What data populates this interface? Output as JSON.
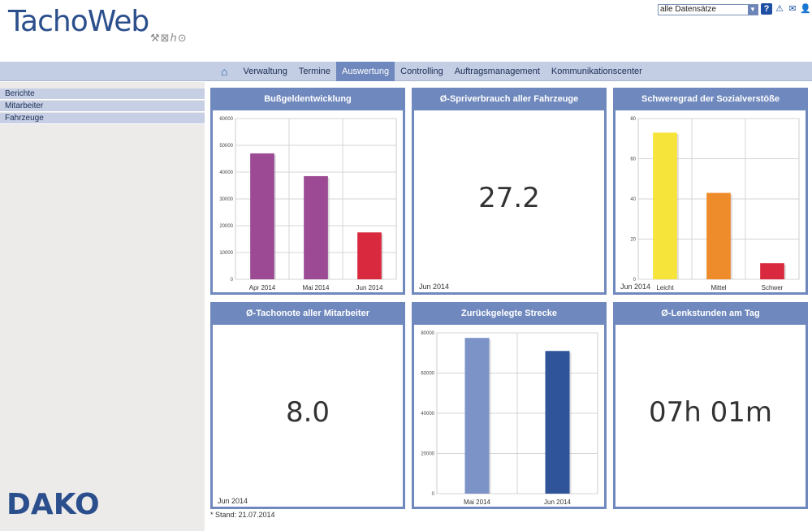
{
  "app": {
    "logo_text": "TachoWeb",
    "logo_tagline": "⚒⊠ℎ⊙",
    "dataset_select_value": "alle Datensätze"
  },
  "top_icons": [
    "help-icon",
    "warning-icon",
    "mail-icon",
    "user-icon"
  ],
  "nav": {
    "items": [
      {
        "label": "Verwaltung"
      },
      {
        "label": "Termine"
      },
      {
        "label": "Auswertung",
        "active": true
      },
      {
        "label": "Controlling"
      },
      {
        "label": "Auftragsmanagement"
      },
      {
        "label": "Kommunikationscenter"
      }
    ]
  },
  "sidebar": {
    "items": [
      {
        "label": "Berichte"
      },
      {
        "label": "Mitarbeiter"
      },
      {
        "label": "Fahrzeuge"
      }
    ],
    "brand": "DAKO"
  },
  "panels": {
    "bussgeld": {
      "title": "Bußgeldentwicklung"
    },
    "sprit": {
      "title": "Ø-Spriverbrauch aller Fahrzeuge",
      "value": "27.2",
      "period": "Jun 2014"
    },
    "schweregrad": {
      "title": "Schweregrad der Sozialverstöße",
      "period": "Jun 2014"
    },
    "tacho": {
      "title": "Ø-Tachonote aller Mitarbeiter",
      "value": "8.0",
      "period": "Jun 2014"
    },
    "strecke": {
      "title": "Zurückgelegte Strecke"
    },
    "lenk": {
      "title": "Ø-Lenkstunden am Tag",
      "value": "07h 01m"
    }
  },
  "footnote": "* Stand: 21.07.2014",
  "colors": {
    "accent": "#6f88bd",
    "purple": "#9b4a93",
    "red": "#d9293f",
    "yellow": "#f7e43a",
    "orange": "#ee8b2b",
    "blue_light": "#7b93c6",
    "blue_dark": "#2f5499"
  },
  "chart_data": [
    {
      "id": "bussgeld",
      "type": "bar",
      "categories": [
        "Apr 2014",
        "Mai 2014",
        "Jun 2014"
      ],
      "values": [
        47000,
        38500,
        17500
      ],
      "bar_colors": [
        "#9b4a93",
        "#9b4a93",
        "#d9293f"
      ],
      "ylim": [
        0,
        60000
      ],
      "yticks": [
        0,
        10000,
        20000,
        30000,
        40000,
        50000,
        60000
      ],
      "grid": true
    },
    {
      "id": "schweregrad",
      "type": "bar",
      "categories": [
        "Leicht",
        "Mittel",
        "Schwer"
      ],
      "values": [
        73,
        43,
        8
      ],
      "bar_colors": [
        "#f7e43a",
        "#ee8b2b",
        "#d9293f"
      ],
      "ylim": [
        0,
        80
      ],
      "yticks": [
        0,
        20,
        40,
        60,
        80
      ],
      "grid": true
    },
    {
      "id": "strecke",
      "type": "bar",
      "categories": [
        "Mai 2014",
        "Jun 2014"
      ],
      "values": [
        77500,
        71000
      ],
      "bar_colors": [
        "#7b93c6",
        "#2f5499"
      ],
      "ylim": [
        0,
        80000
      ],
      "yticks": [
        0,
        20000,
        40000,
        60000,
        80000
      ],
      "grid": true
    }
  ]
}
